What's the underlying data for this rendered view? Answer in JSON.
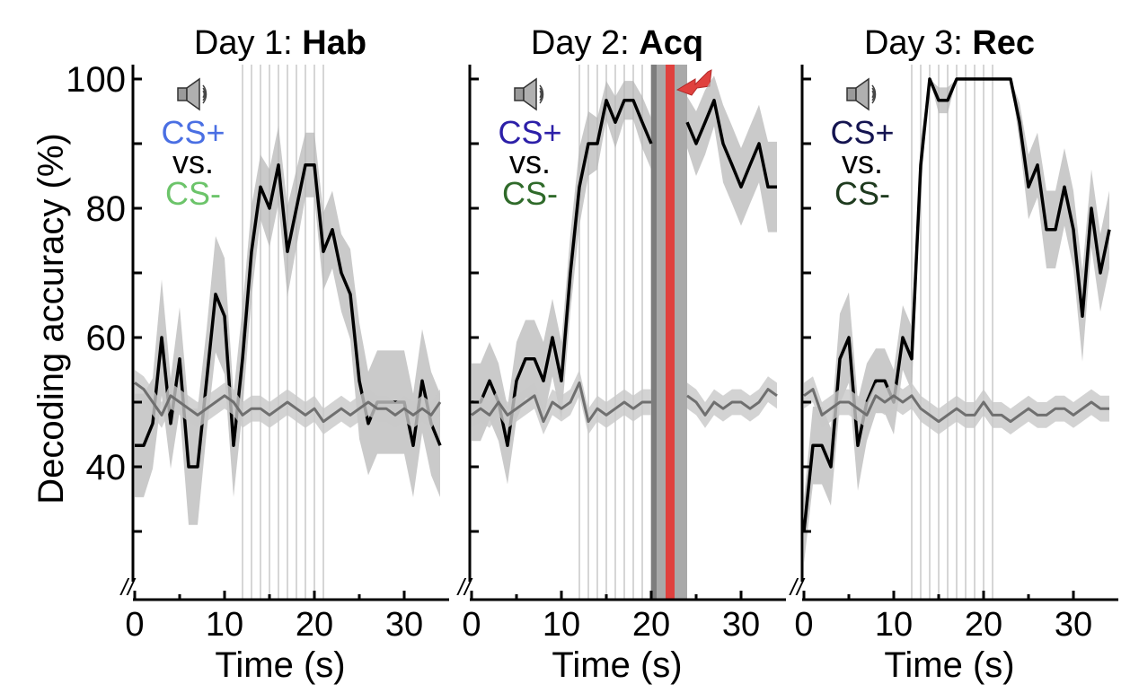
{
  "chart_data": {
    "type": "line",
    "ylabel": "Decoding accuracy (%)",
    "xlabel": "Time (s)",
    "ylim": [
      25,
      102
    ],
    "xlim": [
      0,
      34.5
    ],
    "yticks": [
      40,
      60,
      80,
      100
    ],
    "xticks": [
      0,
      10,
      20,
      30
    ],
    "axis_break": "//",
    "grid": false,
    "cs_onset_lines": [
      12,
      13,
      14,
      15,
      16,
      17,
      18,
      19,
      20,
      21
    ],
    "legend": {
      "cs_plus": "CS+",
      "vs": "vs.",
      "cs_minus": "CS-",
      "icon": "speaker-icon"
    },
    "panels": [
      {
        "title_prefix": "Day 1: ",
        "title_bold": "Hab",
        "cs_plus_color": "#4a6fe3",
        "cs_minus_color": "#6cc46a",
        "shock": false,
        "series": [
          {
            "type": "decoding",
            "color": "#000000",
            "x": [
              0,
              1,
              2,
              3,
              4,
              5,
              6,
              7,
              8,
              9,
              10,
              11,
              12,
              13,
              14,
              15,
              16,
              17,
              18,
              19,
              20,
              21,
              22,
              23,
              24,
              25,
              26,
              27,
              28,
              29,
              30,
              31,
              32,
              33,
              34
            ],
            "values": [
              43.3,
              43.3,
              46.7,
              60,
              46.7,
              56.7,
              40,
              40,
              53.3,
              66.7,
              63.3,
              43.3,
              56.7,
              73.3,
              83.3,
              80,
              86.7,
              73.3,
              80,
              86.7,
              86.7,
              73.3,
              76.7,
              70,
              66.7,
              53.3,
              46.7,
              50,
              50,
              50,
              50,
              43.3,
              53.3,
              46.7,
              43.3
            ],
            "sem": [
              8,
              8,
              7,
              9,
              7,
              8,
              9,
              9,
              8,
              9,
              9,
              8,
              8,
              7,
              5,
              6,
              6,
              7,
              6,
              5,
              5,
              6,
              6,
              6,
              7,
              9,
              8,
              8,
              8,
              8,
              8,
              8,
              8,
              8,
              8
            ]
          },
          {
            "type": "shuffle",
            "color": "#6f6f6f",
            "x": [
              0,
              1,
              2,
              3,
              4,
              5,
              6,
              7,
              8,
              9,
              10,
              11,
              12,
              13,
              14,
              15,
              16,
              17,
              18,
              19,
              20,
              21,
              22,
              23,
              24,
              25,
              26,
              27,
              28,
              29,
              30,
              31,
              32,
              33,
              34
            ],
            "values": [
              53,
              52,
              50,
              48,
              51,
              50,
              49,
              48,
              49,
              50,
              51,
              50,
              48,
              49,
              49,
              48,
              49,
              50,
              49,
              48,
              49,
              47,
              48,
              49,
              48,
              49,
              50,
              49,
              49,
              48,
              49,
              48,
              49,
              48,
              50
            ],
            "sem": [
              2,
              2,
              2,
              2,
              2,
              2,
              2,
              2,
              2,
              2,
              2,
              2,
              2,
              2,
              2,
              2,
              2,
              2,
              2,
              2,
              2,
              2,
              2,
              2,
              2,
              2,
              2,
              2,
              2,
              2,
              2,
              2,
              2,
              2,
              2
            ]
          }
        ]
      },
      {
        "title_prefix": "Day 2: ",
        "title_bold": "Acq",
        "cs_plus_color": "#2c1fa8",
        "cs_minus_color": "#2f6a2a",
        "shock": true,
        "gap": [
          20,
          24
        ],
        "series": [
          {
            "type": "decoding",
            "color": "#000000",
            "x": [
              0,
              1,
              2,
              3,
              4,
              5,
              6,
              7,
              8,
              9,
              10,
              11,
              12,
              13,
              14,
              15,
              16,
              17,
              18,
              19,
              20,
              24,
              25,
              26,
              27,
              28,
              29,
              30,
              31,
              32,
              33,
              34
            ],
            "values": [
              50,
              50,
              53.3,
              50,
              43.3,
              53.3,
              56.7,
              56.7,
              53.3,
              60,
              53.3,
              70,
              83.3,
              90,
              90,
              96.7,
              93.3,
              96.7,
              96.7,
              93.3,
              90,
              93.3,
              90,
              93.3,
              96.7,
              90,
              86.7,
              83.3,
              86.7,
              90,
              83.3,
              83.3
            ],
            "sem": [
              6,
              6,
              6,
              6,
              6,
              6,
              6,
              6,
              6,
              6,
              6,
              6,
              6,
              5,
              4,
              3,
              4,
              3,
              3,
              4,
              4,
              4,
              5,
              5,
              4,
              6,
              6,
              6,
              6,
              6,
              7,
              7
            ]
          },
          {
            "type": "shuffle",
            "color": "#6f6f6f",
            "x": [
              0,
              1,
              2,
              3,
              4,
              5,
              6,
              7,
              8,
              9,
              10,
              11,
              12,
              13,
              14,
              15,
              16,
              17,
              18,
              19,
              20,
              24,
              25,
              26,
              27,
              28,
              29,
              30,
              31,
              32,
              33,
              34
            ],
            "values": [
              48,
              49,
              48,
              50,
              48,
              49,
              50,
              51,
              47,
              50,
              49,
              50,
              53,
              47,
              49,
              48,
              49,
              50,
              49,
              50,
              50,
              51,
              50,
              48,
              50,
              49,
              50,
              50,
              49,
              50,
              52,
              51
            ],
            "sem": [
              2,
              2,
              2,
              2,
              2,
              2,
              2,
              2,
              2,
              2,
              2,
              2,
              2,
              2,
              2,
              2,
              2,
              2,
              2,
              2,
              2,
              2,
              2,
              2,
              2,
              2,
              2,
              2,
              2,
              2,
              2,
              2
            ]
          }
        ]
      },
      {
        "title_prefix": "Day 3: ",
        "title_bold": "Rec",
        "cs_plus_color": "#141450",
        "cs_minus_color": "#1e3a1e",
        "shock": false,
        "series": [
          {
            "type": "decoding",
            "color": "#000000",
            "x": [
              0,
              1,
              2,
              3,
              4,
              5,
              6,
              7,
              8,
              9,
              10,
              11,
              12,
              13,
              14,
              15,
              16,
              17,
              18,
              19,
              20,
              21,
              22,
              23,
              24,
              25,
              26,
              27,
              28,
              29,
              30,
              31,
              32,
              33,
              34
            ],
            "values": [
              30,
              43.3,
              43.3,
              40,
              56.7,
              60,
              43.3,
              50,
              53.3,
              53.3,
              50,
              60,
              56.7,
              86.7,
              100,
              96.7,
              96.7,
              100,
              100,
              100,
              100,
              100,
              100,
              100,
              93.3,
              83.3,
              86.7,
              76.7,
              76.7,
              83.3,
              76.7,
              63.3,
              80,
              70,
              76.7
            ],
            "sem": [
              5,
              6,
              6,
              6,
              7,
              7,
              7,
              6,
              5,
              5,
              5,
              5,
              5,
              4,
              0,
              2,
              2,
              0,
              0,
              0,
              0,
              0,
              0,
              0,
              3,
              5,
              5,
              6,
              6,
              6,
              6,
              7,
              6,
              6,
              6
            ]
          },
          {
            "type": "shuffle",
            "color": "#6f6f6f",
            "x": [
              0,
              1,
              2,
              3,
              4,
              5,
              6,
              7,
              8,
              9,
              10,
              11,
              12,
              13,
              14,
              15,
              16,
              17,
              18,
              19,
              20,
              21,
              22,
              23,
              24,
              25,
              26,
              27,
              28,
              29,
              30,
              31,
              32,
              33,
              34
            ],
            "values": [
              51,
              52,
              48,
              49,
              50,
              50,
              49,
              48,
              51,
              50,
              51,
              50,
              51,
              49,
              48,
              47,
              48,
              49,
              48,
              48,
              50,
              48,
              48,
              47,
              48,
              49,
              48,
              48,
              49,
              49,
              48,
              49,
              50,
              49,
              49
            ],
            "sem": [
              2,
              2,
              2,
              2,
              2,
              2,
              2,
              2,
              2,
              2,
              2,
              2,
              2,
              2,
              2,
              2,
              2,
              2,
              2,
              2,
              2,
              2,
              2,
              2,
              2,
              2,
              2,
              2,
              2,
              2,
              2,
              2,
              2,
              2,
              2
            ]
          }
        ]
      }
    ]
  }
}
